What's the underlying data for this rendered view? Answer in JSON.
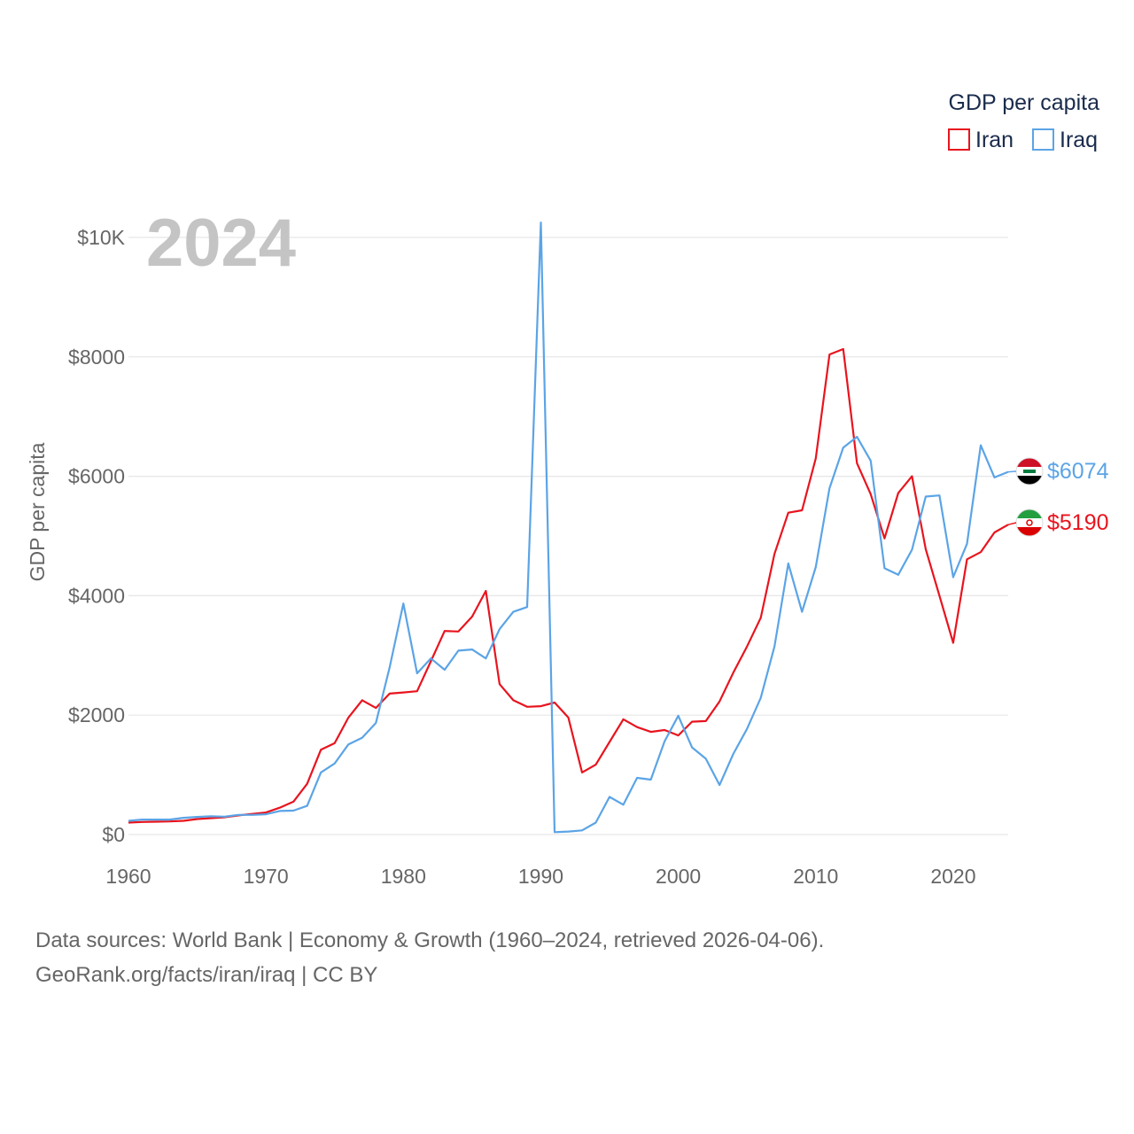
{
  "chart_data": {
    "type": "line",
    "title": "GDP per capita",
    "year_label": "2024",
    "ylabel": "GDP per capita",
    "xlabel": "",
    "xlim": [
      1960,
      2024
    ],
    "ylim": [
      0,
      10000
    ],
    "y_ticks": [
      0,
      2000,
      4000,
      6000,
      8000,
      10000
    ],
    "y_tick_labels": [
      "$0",
      "$2000",
      "$4000",
      "$6000",
      "$8000",
      "$10K"
    ],
    "x_ticks": [
      1960,
      1970,
      1980,
      1990,
      2000,
      2010,
      2020
    ],
    "x_tick_labels": [
      "1960",
      "1970",
      "1980",
      "1990",
      "2000",
      "2010",
      "2020"
    ],
    "grid": true,
    "legend_position": "top-right",
    "series": [
      {
        "name": "Iran",
        "color": "#e8141e",
        "end_label": "$5190",
        "flag": "iran-flag",
        "x": [
          1960,
          1961,
          1962,
          1963,
          1964,
          1965,
          1966,
          1967,
          1968,
          1969,
          1970,
          1971,
          1972,
          1973,
          1974,
          1975,
          1976,
          1977,
          1978,
          1979,
          1980,
          1981,
          1982,
          1983,
          1984,
          1985,
          1986,
          1987,
          1988,
          1989,
          1990,
          1991,
          1992,
          1993,
          1994,
          1995,
          1996,
          1997,
          1998,
          1999,
          2000,
          2001,
          2002,
          2003,
          2004,
          2005,
          2006,
          2007,
          2008,
          2009,
          2010,
          2011,
          2012,
          2013,
          2014,
          2015,
          2016,
          2017,
          2018,
          2019,
          2020,
          2021,
          2022,
          2023,
          2024
        ],
        "values": [
          200,
          210,
          215,
          220,
          230,
          260,
          275,
          290,
          320,
          345,
          370,
          450,
          550,
          850,
          1420,
          1530,
          1960,
          2250,
          2120,
          2360,
          2380,
          2400,
          2900,
          3410,
          3400,
          3650,
          4080,
          2520,
          2250,
          2140,
          2150,
          2210,
          1960,
          1040,
          1170,
          1550,
          1930,
          1800,
          1720,
          1750,
          1660,
          1890,
          1900,
          2230,
          2710,
          3150,
          3630,
          4700,
          5390,
          5430,
          6300,
          8040,
          8130,
          6220,
          5700,
          4960,
          5720,
          6000,
          4780,
          4000,
          3210,
          4610,
          4730,
          5060,
          5190
        ]
      },
      {
        "name": "Iraq",
        "color": "#5ba4e6",
        "end_label": "$6074",
        "flag": "iraq-flag",
        "x": [
          1960,
          1961,
          1962,
          1963,
          1964,
          1965,
          1966,
          1967,
          1968,
          1969,
          1970,
          1971,
          1972,
          1973,
          1974,
          1975,
          1976,
          1977,
          1978,
          1979,
          1980,
          1981,
          1982,
          1983,
          1984,
          1985,
          1986,
          1987,
          1988,
          1989,
          1990,
          1991,
          1992,
          1993,
          1994,
          1995,
          1996,
          1997,
          1998,
          1999,
          2000,
          2001,
          2002,
          2003,
          2004,
          2005,
          2006,
          2007,
          2008,
          2009,
          2010,
          2011,
          2012,
          2013,
          2014,
          2015,
          2016,
          2017,
          2018,
          2019,
          2020,
          2021,
          2022,
          2023,
          2024
        ],
        "values": [
          230,
          250,
          250,
          250,
          280,
          295,
          305,
          300,
          330,
          330,
          340,
          395,
          400,
          480,
          1040,
          1190,
          1510,
          1620,
          1870,
          2800,
          3870,
          2700,
          2950,
          2760,
          3080,
          3100,
          2950,
          3440,
          3730,
          3810,
          10250,
          40,
          50,
          70,
          200,
          630,
          500,
          950,
          920,
          1560,
          1990,
          1460,
          1270,
          830,
          1350,
          1770,
          2290,
          3150,
          4540,
          3730,
          4480,
          5800,
          6480,
          6660,
          6260,
          4460,
          4350,
          4770,
          5660,
          5680,
          4310,
          4870,
          6520,
          5980,
          6074
        ]
      }
    ]
  },
  "source": {
    "line1": "Data sources: World Bank | Economy & Growth (1960–2024, retrieved 2026-04-06).",
    "line2": "GeoRank.org/facts/iran/iraq | CC BY"
  }
}
